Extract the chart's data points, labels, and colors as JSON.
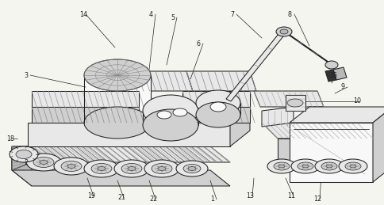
{
  "bg_color": "#f5f5f0",
  "line_color": "#222222",
  "fig_width": 4.85,
  "fig_height": 2.59,
  "dpi": 100,
  "label_fs": 5.8,
  "lw_main": 0.75,
  "lw_thin": 0.4,
  "lw_med": 0.55,
  "gray_light": "#e8e8e8",
  "gray_mid": "#d0d0d0",
  "gray_dark": "#b8b8b8",
  "white": "#f8f8f8"
}
